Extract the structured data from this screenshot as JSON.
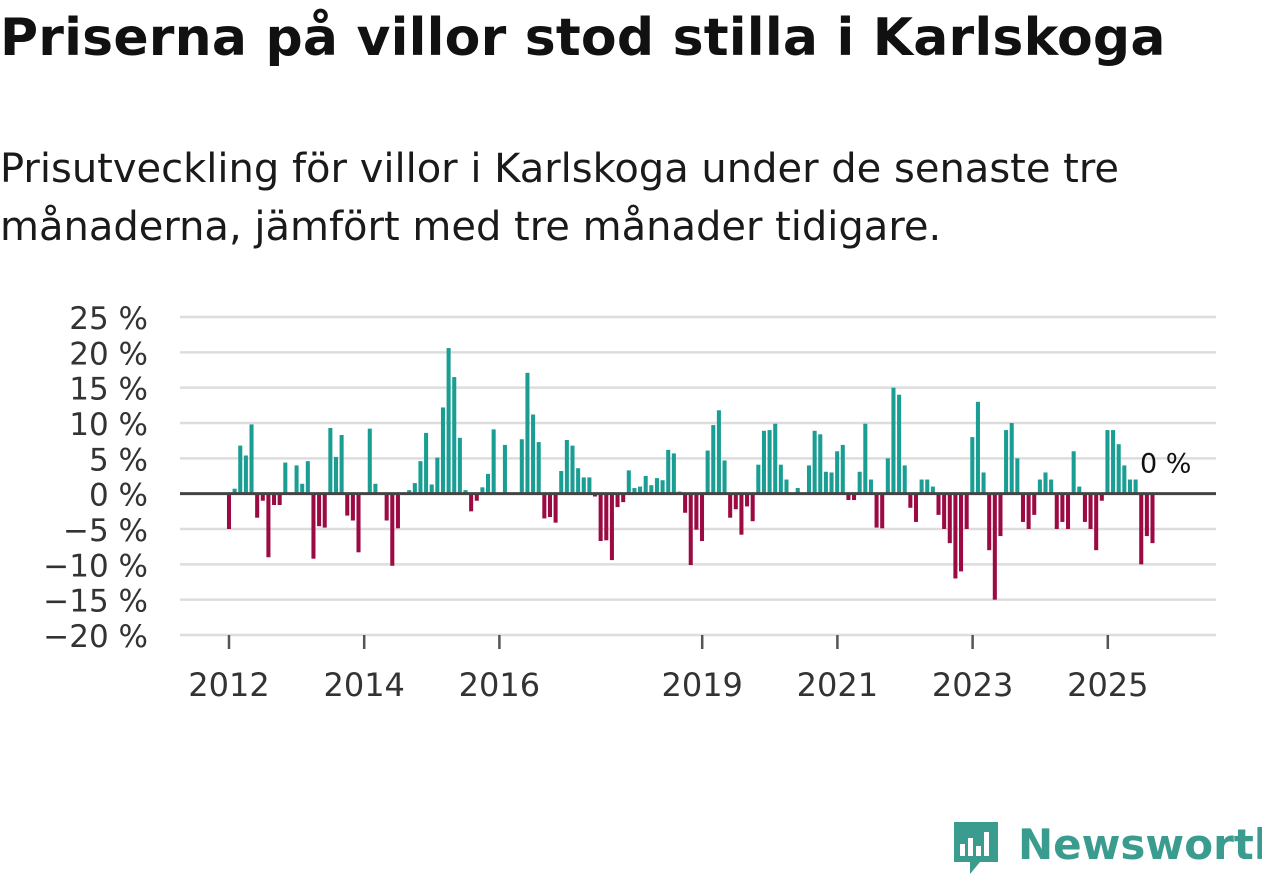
{
  "title": "Priserna på villor stod stilla i Karlskoga",
  "subtitle": "Prisutveckling för villor i Karlskoga under de senaste tre månaderna, jämfört med tre månader tidigare.",
  "brand": {
    "name": "Newsworthy",
    "icon": "newsworthy-logo-icon"
  },
  "colors": {
    "positive": "#1a9e93",
    "negative": "#9b0a43",
    "grid": "#dddddd",
    "zero": "#444444",
    "brand": "#3a9c8e"
  },
  "chart_data": {
    "type": "bar",
    "title": "Priserna på villor stod stilla i Karlskoga",
    "xlabel": "",
    "ylabel": "",
    "ylim": [
      -20,
      25
    ],
    "grid": true,
    "y_ticks": [
      "25 %",
      "20 %",
      "15 %",
      "10 %",
      "5 %",
      "0 %",
      "−5 %",
      "−10 %",
      "−15 %",
      "−20 %"
    ],
    "y_tick_values": [
      25,
      20,
      15,
      10,
      5,
      0,
      -5,
      -10,
      -15,
      -20
    ],
    "x_ticks": [
      "2012",
      "2014",
      "2016",
      "2019",
      "2021",
      "2023",
      "2025"
    ],
    "x_tick_values": [
      2012,
      2014,
      2016,
      2019,
      2021,
      2023,
      2025
    ],
    "x_start": 2012,
    "x_step": 0.0833,
    "annotation": {
      "text": "0 %",
      "value": 0
    },
    "series": [
      {
        "name": "Prisutveckling",
        "values": [
          -5,
          0.7,
          6.8,
          5.4,
          9.8,
          -3.4,
          -1,
          -9,
          -1.6,
          -1.6,
          4.4,
          0,
          4,
          1.4,
          4.6,
          -9.2,
          -4.6,
          -4.8,
          9.3,
          5.2,
          8.3,
          -3.1,
          -3.8,
          -8.3,
          0,
          9.2,
          1.4,
          0,
          -3.8,
          -10.2,
          -4.9,
          0,
          0.5,
          1.5,
          4.6,
          8.6,
          1.3,
          5.1,
          12.2,
          20.6,
          16.5,
          7.9,
          0.5,
          -2.5,
          -1,
          0.9,
          2.8,
          9.1,
          0,
          6.9,
          0,
          0,
          7.7,
          17.1,
          11.2,
          7.3,
          -3.5,
          -3.3,
          -4.1,
          3.2,
          7.6,
          6.8,
          3.6,
          2.3,
          2.3,
          -0.4,
          -6.7,
          -6.6,
          -9.4,
          -1.9,
          -1.2,
          3.3,
          0.8,
          1,
          2.5,
          1.2,
          2.2,
          1.9,
          6.2,
          5.7,
          0.3,
          -2.7,
          -10.1,
          -5.1,
          -6.7,
          6.1,
          9.7,
          11.8,
          4.7,
          -3.4,
          -2.2,
          -5.8,
          -1.8,
          -3.9,
          4.1,
          8.9,
          9,
          9.9,
          4.1,
          2,
          0,
          0.8,
          0,
          4,
          8.9,
          8.4,
          3.1,
          3,
          6,
          6.9,
          -0.9,
          -0.9,
          3.1,
          9.9,
          2,
          -4.8,
          -4.9,
          5,
          15,
          14,
          4,
          -2,
          -4,
          2,
          2,
          1,
          -3,
          -5,
          -7,
          -12,
          -11,
          -5,
          8,
          13,
          3,
          -8,
          -15,
          -6,
          9,
          10,
          5,
          -4,
          -5,
          -3,
          2,
          3,
          2,
          -5,
          -4,
          -5,
          6,
          1,
          -4,
          -5,
          -8,
          -1,
          9,
          9,
          7,
          4,
          2,
          2,
          -10,
          -6,
          -7
        ]
      }
    ]
  }
}
